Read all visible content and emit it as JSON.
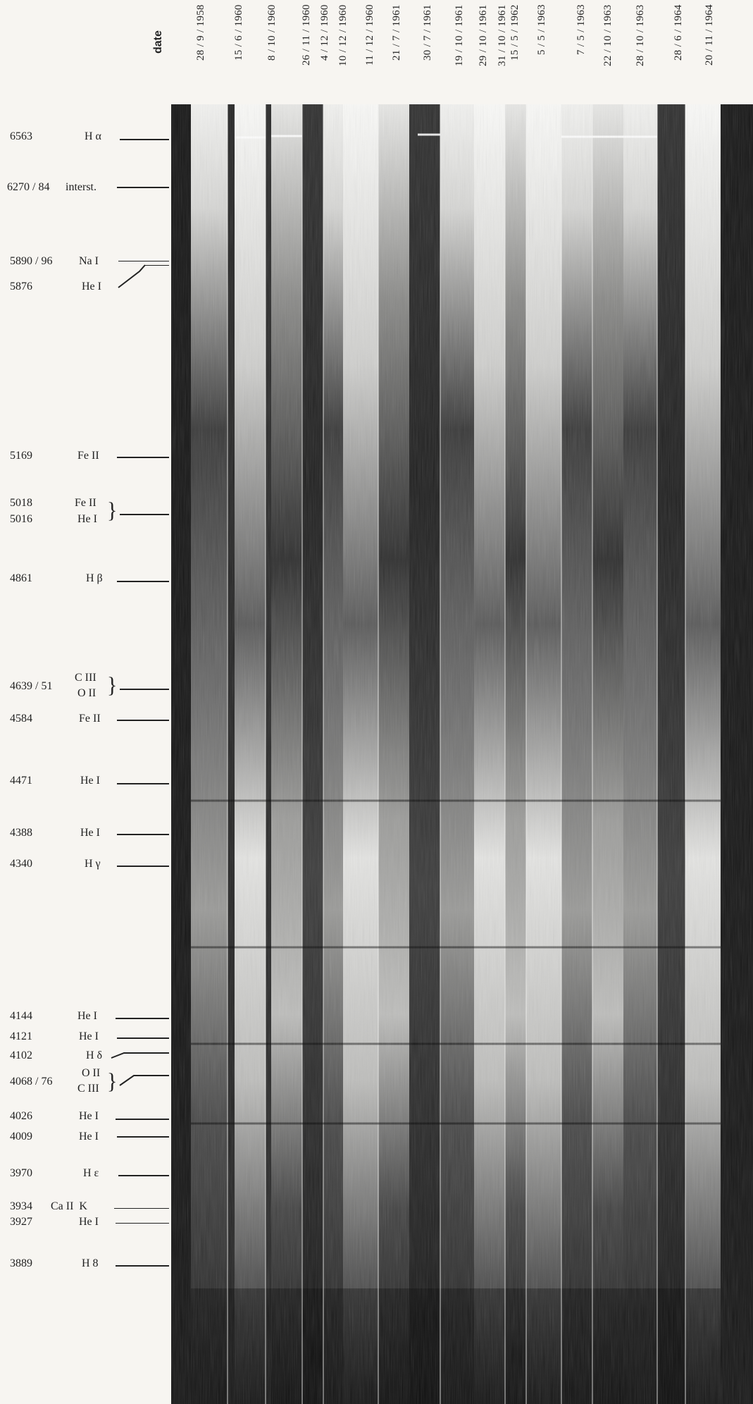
{
  "header": {
    "date_title": "date",
    "dates": [
      "28 / 9 / 1958",
      "15 / 6 / 1960",
      "8 / 10 / 1960",
      "26 / 11 / 1960",
      "4 / 12 / 1960",
      "10 / 12 / 1960",
      "11 / 12 / 1960",
      "21 / 7 / 1961",
      "30 / 7 / 1961",
      "19 / 10 / 1961",
      "29 / 10 / 1961",
      "31 / 10 / 1961",
      "15 / 5 / 1962",
      "5 / 5 / 1963",
      "7 / 5 / 1963",
      "22 / 10 / 1963",
      "28 / 10 / 1963",
      "28 / 6 / 1964",
      "20 / 11 / 1964"
    ]
  },
  "lines": [
    {
      "wavelength": "6563",
      "ion": "H α"
    },
    {
      "wavelength": "6270 / 84",
      "ion": "interst."
    },
    {
      "wavelength": "5890 / 96",
      "ion": "Na I"
    },
    {
      "wavelength": "5876",
      "ion": "He I"
    },
    {
      "wavelength": "5169",
      "ion": "Fe II"
    },
    {
      "wavelength": "5018",
      "ion": "Fe II"
    },
    {
      "wavelength": "5016",
      "ion": "He I"
    },
    {
      "wavelength": "4861",
      "ion": "H β"
    },
    {
      "wavelength": "4639 / 51",
      "ion": "C III"
    },
    {
      "wavelength": "",
      "ion": "O II"
    },
    {
      "wavelength": "4584",
      "ion": "Fe II"
    },
    {
      "wavelength": "4471",
      "ion": "He I"
    },
    {
      "wavelength": "4388",
      "ion": "He I"
    },
    {
      "wavelength": "4340",
      "ion": "H γ"
    },
    {
      "wavelength": "4144",
      "ion": "He I"
    },
    {
      "wavelength": "4121",
      "ion": "He I"
    },
    {
      "wavelength": "4102",
      "ion": "H δ"
    },
    {
      "wavelength": "4068 / 76",
      "ion": "O II"
    },
    {
      "wavelength": "",
      "ion": "C III"
    },
    {
      "wavelength": "4026",
      "ion": "He I"
    },
    {
      "wavelength": "4009",
      "ion": "He I"
    },
    {
      "wavelength": "3970",
      "ion": "H ε"
    },
    {
      "wavelength": "3934",
      "ion": "Ca II  K"
    },
    {
      "wavelength": "3927",
      "ion": "He I"
    },
    {
      "wavelength": "3889",
      "ion": "H 8"
    }
  ]
}
